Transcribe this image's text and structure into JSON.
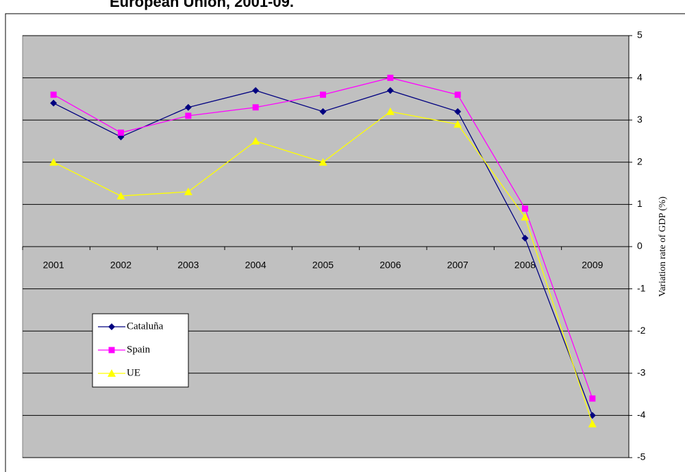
{
  "chart_data": {
    "type": "line",
    "title": "European Union, 2001-09.",
    "y_label": "Variation rate of GDP (%)",
    "categories": [
      "2001",
      "2002",
      "2003",
      "2004",
      "2005",
      "2006",
      "2007",
      "2008",
      "2009"
    ],
    "series": [
      {
        "name": "Cataluña",
        "color": "#000080",
        "marker": "diamond",
        "values": [
          3.4,
          2.6,
          3.3,
          3.7,
          3.2,
          3.7,
          3.2,
          0.2,
          -4.0
        ]
      },
      {
        "name": "Spain",
        "color": "#ff00ff",
        "marker": "square",
        "values": [
          3.6,
          2.7,
          3.1,
          3.3,
          3.6,
          4.0,
          3.6,
          0.9,
          -3.6
        ]
      },
      {
        "name": "UE",
        "color": "#ffff00",
        "marker": "triangle",
        "values": [
          2.0,
          1.2,
          1.3,
          2.5,
          2.0,
          3.2,
          2.9,
          0.7,
          -4.2
        ]
      }
    ],
    "ylim": [
      -5,
      5
    ],
    "yticks": [
      -5,
      -4,
      -3,
      -2,
      -1,
      0,
      1,
      2,
      3,
      4,
      5
    ],
    "grid": true,
    "legend": "lower-left"
  }
}
